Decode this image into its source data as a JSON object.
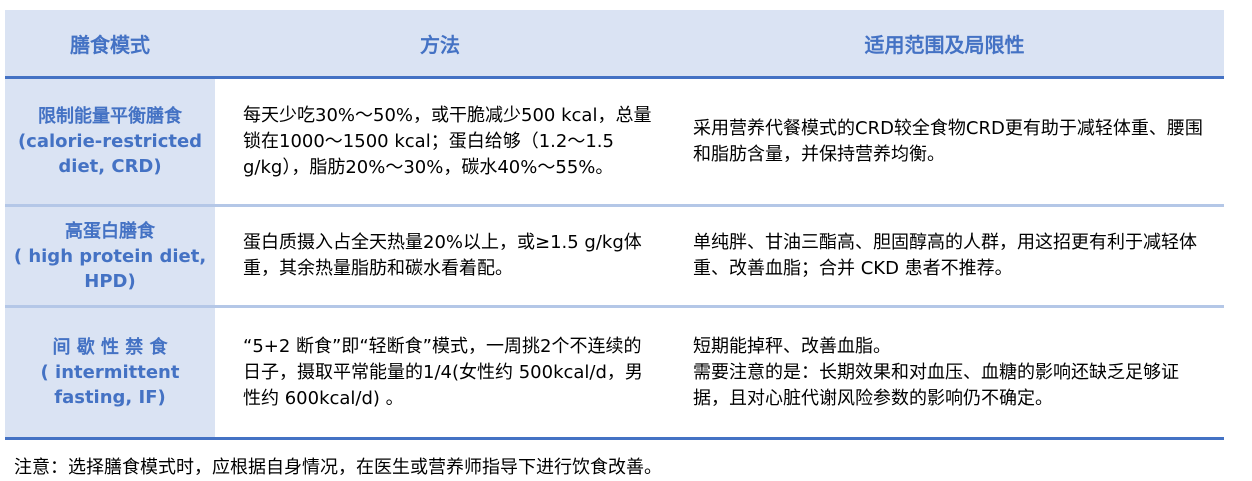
{
  "table": {
    "headers": [
      "膳食模式",
      "方法",
      "适用范围及局限性"
    ],
    "rows": [
      {
        "mode_cn": "限制能量平衡膳食",
        "mode_en": "(calorie-restricted diet, CRD)",
        "method": "每天少吃30%～50%，或干脆减少500 kcal，总量锁在1000～1500 kcal；蛋白给够（1.2～1.5 g/kg），脂肪20%～30%，碳水40%～55%。",
        "scope": "采用营养代餐模式的CRD较全食物CRD更有助于减轻体重、腰围和脂肪含量，并保持营养均衡。"
      },
      {
        "mode_cn": "高蛋白膳食",
        "mode_en": "( high protein diet, HPD)",
        "method": "蛋白质摄入占全天热量20%以上，或≥1.5 g/kg体重，其余热量脂肪和碳水看着配。",
        "scope": "单纯胖、甘油三酯高、胆固醇高的人群，用这招更有利于减轻体重、改善血脂；合并 CKD 患者不推荐。"
      },
      {
        "mode_cn": "间 歇 性 禁 食",
        "mode_en": "( intermittent fasting, IF)",
        "method": "“5+2 断食”即“轻断食”模式，一周挑2个不连续的日子，摄取平常能量的1/4(女性约 500kcal/d，男性约 600kcal/d) 。",
        "scope_lines": [
          "短期能掉秤、改善血脂。",
          "需要注意的是：长期效果和对血压、血糖的影响还缺乏足够证据，且对心脏代谢风险参数的影响仍不确定。"
        ]
      }
    ]
  },
  "note": "注意：选择膳食模式时，应根据自身情况，在医生或营养师指导下进行饮食改善。",
  "colors": {
    "accent": "#4472c4",
    "header_bg": "#dae3f3",
    "row_border": "#b4c7e7"
  }
}
